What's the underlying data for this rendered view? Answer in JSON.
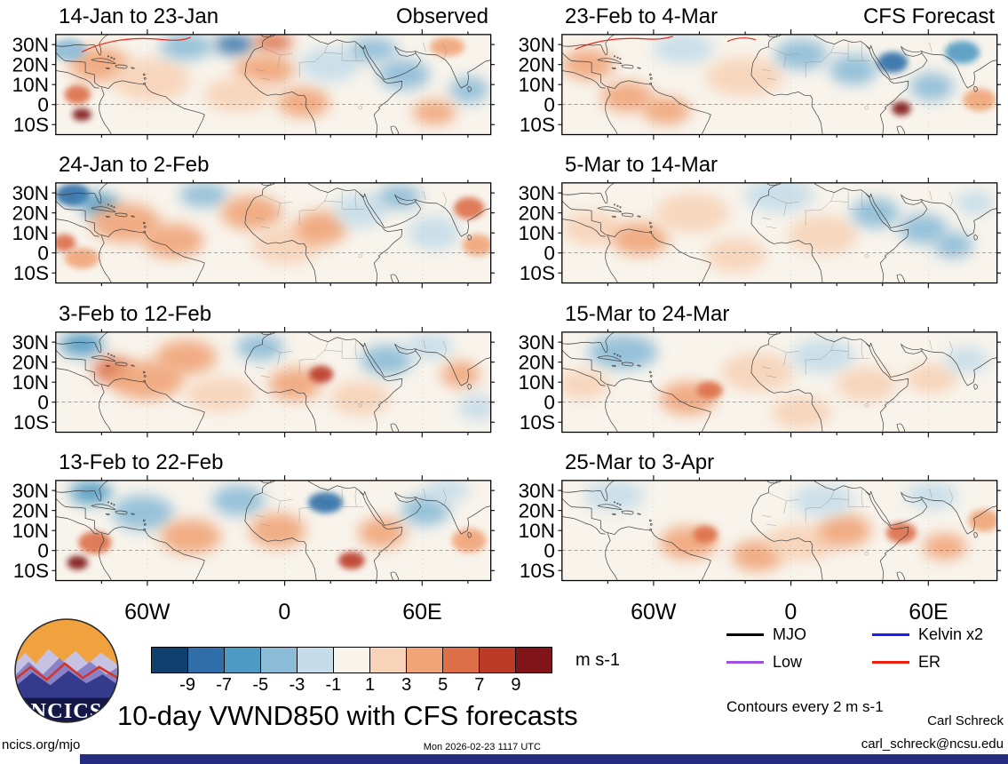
{
  "title": "10-day VWND850 with CFS forecasts",
  "logo": {
    "text": "NCICS"
  },
  "colors": {
    "footer_bar": "#252b80",
    "er_contour": "#e8281e",
    "background_field": "#f8f4ec"
  },
  "footer": {
    "site": "ncics.org/mjo",
    "timestamp": "Mon 2026-02-23 1117 UTC",
    "author": "Carl Schreck",
    "email": "carl_schreck@ncsu.edu"
  },
  "chart_data": {
    "type": "heatmap",
    "subtype": "geographic-anomaly-maps",
    "description": "Eight lat-lon map panels of 10-day mean VWND850 anomalies (shading, m s-1). Left column = Observed, right column = CFS Forecast. Anomaly fields are approximated as shaded blob centers [x_fraction, y_fraction, value, rx, ry].",
    "domain": {
      "lon_range": [
        -100,
        90
      ],
      "lat_range": [
        -15,
        35
      ]
    },
    "x_ticks": [
      {
        "label": "60W",
        "lon": -60
      },
      {
        "label": "0",
        "lon": 0
      },
      {
        "label": "60E",
        "lon": 60
      }
    ],
    "y_ticks": [
      {
        "label": "30N",
        "lat": 30
      },
      {
        "label": "20N",
        "lat": 20
      },
      {
        "label": "10N",
        "lat": 10
      },
      {
        "label": "0",
        "lat": 0
      },
      {
        "label": "10S",
        "lat": -10
      }
    ],
    "columns": [
      {
        "heading": "Observed"
      },
      {
        "heading": "CFS Forecast"
      }
    ],
    "colorbar": {
      "units": "m s-1",
      "boundaries": [
        -9,
        -7,
        -5,
        -3,
        -1,
        1,
        3,
        5,
        7,
        9
      ],
      "colors": [
        "#10406e",
        "#2f6ea8",
        "#4f9ac2",
        "#8cbcd7",
        "#c6dde9",
        "#f8f4ec",
        "#f7d3b8",
        "#f0a579",
        "#dc6e48",
        "#bc3a28",
        "#801419"
      ]
    },
    "contour_note": "Contours every 2 m s-1",
    "legend": [
      {
        "label": "MJO",
        "color": "#000000"
      },
      {
        "label": "Kelvin x2",
        "color": "#1a1aff"
      },
      {
        "label": "Low",
        "color": "#a050e0"
      },
      {
        "label": "ER",
        "color": "#f02011"
      }
    ],
    "panels": [
      {
        "title": "14-Jan to 23-Jan",
        "corner_label": "Observed",
        "column": 0,
        "blobs": [
          [
            0.06,
            0.8,
            9,
            22,
            14
          ],
          [
            0.05,
            0.6,
            5,
            30,
            22
          ],
          [
            0.1,
            0.3,
            3,
            70,
            40
          ],
          [
            0.03,
            0.15,
            -3,
            40,
            25
          ],
          [
            0.22,
            0.45,
            1,
            90,
            50
          ],
          [
            0.3,
            0.12,
            -3,
            60,
            30
          ],
          [
            0.41,
            0.1,
            -7,
            45,
            22
          ],
          [
            0.5,
            0.08,
            5,
            45,
            22
          ],
          [
            0.48,
            0.35,
            3,
            70,
            35
          ],
          [
            0.42,
            0.6,
            1,
            80,
            40
          ],
          [
            0.57,
            0.68,
            3,
            60,
            35
          ],
          [
            0.63,
            0.3,
            -1,
            70,
            40
          ],
          [
            0.73,
            0.15,
            -3,
            55,
            28
          ],
          [
            0.8,
            0.4,
            -3,
            60,
            35
          ],
          [
            0.9,
            0.12,
            3,
            40,
            22
          ],
          [
            0.95,
            0.55,
            -3,
            45,
            30
          ],
          [
            0.87,
            0.78,
            3,
            50,
            28
          ]
        ],
        "er_contours": [
          "M60,40 Q140,0 250,12 Q290,16 310,6"
        ]
      },
      {
        "title": "24-Jan to 2-Feb",
        "corner_label": "",
        "column": 0,
        "blobs": [
          [
            0.04,
            0.12,
            -7,
            40,
            26
          ],
          [
            0.1,
            0.22,
            -5,
            45,
            28
          ],
          [
            0.02,
            0.6,
            5,
            26,
            20
          ],
          [
            0.06,
            0.75,
            3,
            40,
            24
          ],
          [
            0.16,
            0.4,
            3,
            80,
            45
          ],
          [
            0.27,
            0.58,
            3,
            70,
            40
          ],
          [
            0.34,
            0.12,
            -3,
            55,
            28
          ],
          [
            0.45,
            0.3,
            3,
            70,
            40
          ],
          [
            0.53,
            0.62,
            1,
            80,
            45
          ],
          [
            0.61,
            0.45,
            3,
            60,
            40
          ],
          [
            0.7,
            0.28,
            -1,
            60,
            40
          ],
          [
            0.79,
            0.14,
            -3,
            50,
            28
          ],
          [
            0.87,
            0.5,
            -1,
            60,
            40
          ],
          [
            0.95,
            0.25,
            5,
            35,
            25
          ],
          [
            0.97,
            0.62,
            3,
            35,
            25
          ]
        ],
        "er_contours": []
      },
      {
        "title": "3-Feb to 12-Feb",
        "corner_label": "",
        "column": 0,
        "blobs": [
          [
            0.06,
            0.12,
            -5,
            50,
            28
          ],
          [
            0.13,
            0.38,
            5,
            45,
            30
          ],
          [
            0.21,
            0.48,
            3,
            85,
            45
          ],
          [
            0.3,
            0.25,
            3,
            70,
            40
          ],
          [
            0.38,
            0.62,
            1,
            80,
            40
          ],
          [
            0.47,
            0.15,
            -3,
            55,
            30
          ],
          [
            0.55,
            0.52,
            3,
            60,
            38
          ],
          [
            0.61,
            0.42,
            7,
            28,
            20
          ],
          [
            0.7,
            0.66,
            1,
            70,
            40
          ],
          [
            0.76,
            0.28,
            -3,
            60,
            35
          ],
          [
            0.86,
            0.14,
            -1,
            55,
            30
          ],
          [
            0.93,
            0.42,
            3,
            45,
            30
          ],
          [
            0.97,
            0.75,
            -1,
            45,
            30
          ]
        ],
        "er_contours": []
      },
      {
        "title": "13-Feb to 22-Feb",
        "corner_label": "",
        "column": 0,
        "blobs": [
          [
            0.05,
            0.82,
            9,
            24,
            16
          ],
          [
            0.09,
            0.62,
            5,
            38,
            26
          ],
          [
            0.08,
            0.12,
            -5,
            48,
            28
          ],
          [
            0.2,
            0.32,
            -3,
            70,
            40
          ],
          [
            0.31,
            0.56,
            3,
            70,
            40
          ],
          [
            0.42,
            0.2,
            -3,
            60,
            35
          ],
          [
            0.51,
            0.5,
            3,
            65,
            40
          ],
          [
            0.62,
            0.22,
            -7,
            40,
            24
          ],
          [
            0.68,
            0.8,
            7,
            30,
            20
          ],
          [
            0.75,
            0.52,
            3,
            55,
            35
          ],
          [
            0.85,
            0.3,
            -3,
            55,
            35
          ],
          [
            0.95,
            0.6,
            3,
            40,
            28
          ],
          [
            0.9,
            0.1,
            -1,
            50,
            28
          ]
        ],
        "er_contours": []
      },
      {
        "title": "23-Feb to 4-Mar",
        "corner_label": "CFS Forecast",
        "column": 1,
        "blobs": [
          [
            0.06,
            0.3,
            3,
            60,
            35
          ],
          [
            0.15,
            0.62,
            3,
            60,
            35
          ],
          [
            0.28,
            0.14,
            -1,
            70,
            35
          ],
          [
            0.42,
            0.42,
            1,
            90,
            45
          ],
          [
            0.55,
            0.2,
            -3,
            60,
            35
          ],
          [
            0.67,
            0.35,
            -3,
            55,
            35
          ],
          [
            0.76,
            0.28,
            -7,
            35,
            24
          ],
          [
            0.78,
            0.74,
            9,
            22,
            16
          ],
          [
            0.85,
            0.52,
            -3,
            50,
            32
          ],
          [
            0.92,
            0.18,
            -5,
            40,
            26
          ],
          [
            0.96,
            0.65,
            3,
            38,
            26
          ],
          [
            0.24,
            0.76,
            3,
            55,
            32
          ]
        ],
        "er_contours": [
          "M30,34 Q100,4 190,10 Q230,13 255,4",
          "M380,16 Q410,2 445,12"
        ]
      },
      {
        "title": "5-Mar to 14-Mar",
        "corner_label": "",
        "column": 1,
        "blobs": [
          [
            0.07,
            0.45,
            1,
            70,
            40
          ],
          [
            0.18,
            0.56,
            3,
            65,
            38
          ],
          [
            0.3,
            0.3,
            1,
            85,
            45
          ],
          [
            0.5,
            0.12,
            -1,
            80,
            40
          ],
          [
            0.6,
            0.52,
            1,
            80,
            45
          ],
          [
            0.72,
            0.3,
            -3,
            55,
            35
          ],
          [
            0.83,
            0.46,
            -3,
            55,
            35
          ],
          [
            0.9,
            0.62,
            -3,
            45,
            30
          ],
          [
            0.95,
            0.2,
            -1,
            45,
            28
          ],
          [
            0.4,
            0.72,
            1,
            70,
            40
          ]
        ],
        "er_contours": []
      },
      {
        "title": "15-Mar to 24-Mar",
        "corner_label": "",
        "column": 1,
        "blobs": [
          [
            0.14,
            0.2,
            -3,
            80,
            40
          ],
          [
            0.05,
            0.52,
            1,
            60,
            35
          ],
          [
            0.29,
            0.66,
            3,
            65,
            38
          ],
          [
            0.34,
            0.58,
            5,
            30,
            20
          ],
          [
            0.45,
            0.4,
            1,
            85,
            45
          ],
          [
            0.6,
            0.24,
            -1,
            75,
            40
          ],
          [
            0.7,
            0.52,
            1,
            70,
            40
          ],
          [
            0.85,
            0.46,
            1,
            60,
            35
          ],
          [
            0.93,
            0.28,
            -1,
            50,
            30
          ],
          [
            0.55,
            0.8,
            1,
            70,
            38
          ]
        ],
        "er_contours": []
      },
      {
        "title": "25-Mar to 3-Apr",
        "corner_label": "",
        "column": 1,
        "blobs": [
          [
            0.12,
            0.15,
            -1,
            70,
            35
          ],
          [
            0.29,
            0.62,
            3,
            65,
            38
          ],
          [
            0.33,
            0.54,
            5,
            28,
            20
          ],
          [
            0.45,
            0.75,
            3,
            60,
            35
          ],
          [
            0.55,
            0.62,
            1,
            80,
            42
          ],
          [
            0.65,
            0.5,
            3,
            60,
            38
          ],
          [
            0.78,
            0.52,
            5,
            35,
            24
          ],
          [
            0.88,
            0.66,
            3,
            50,
            30
          ],
          [
            0.85,
            0.15,
            -1,
            60,
            32
          ],
          [
            0.6,
            0.2,
            -1,
            70,
            36
          ],
          [
            0.97,
            0.4,
            3,
            36,
            26
          ]
        ],
        "er_contours": []
      }
    ]
  }
}
